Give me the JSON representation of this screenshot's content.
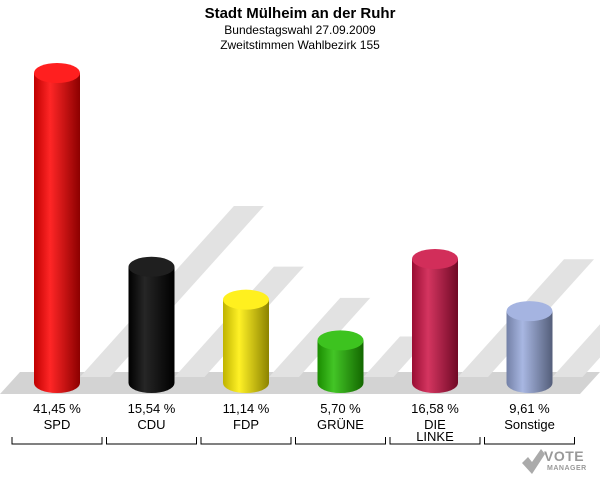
{
  "chart_data": {
    "type": "bar",
    "title": "Stadt Mülheim an der Ruhr",
    "subtitle_1": "Bundestagswahl 27.09.2009",
    "subtitle_2": "Zweitstimmen Wahlbezirk 155",
    "categories": [
      "SPD",
      "CDU",
      "FDP",
      "GRÜNE",
      "DIE LINKE",
      "Sonstige"
    ],
    "category_lines": [
      [
        "SPD"
      ],
      [
        "CDU"
      ],
      [
        "FDP"
      ],
      [
        "GRÜNE"
      ],
      [
        "DIE",
        "LINKE"
      ],
      [
        "Sonstige"
      ]
    ],
    "values": [
      41.45,
      15.54,
      11.14,
      5.7,
      16.58,
      9.61
    ],
    "value_labels": [
      "41,45 %",
      "15,54 %",
      "11,14 %",
      "5,70 %",
      "16,58 %",
      "9,61 %"
    ],
    "colors": [
      "#ff0000",
      "#000000",
      "#ffee00",
      "#22bb00",
      "#cc1144",
      "#99aadd"
    ],
    "ylim": [
      0,
      41.45
    ],
    "grid": false,
    "legend": "none"
  },
  "logo": {
    "text_1": "VOTE",
    "text_2": "MANAGER"
  }
}
